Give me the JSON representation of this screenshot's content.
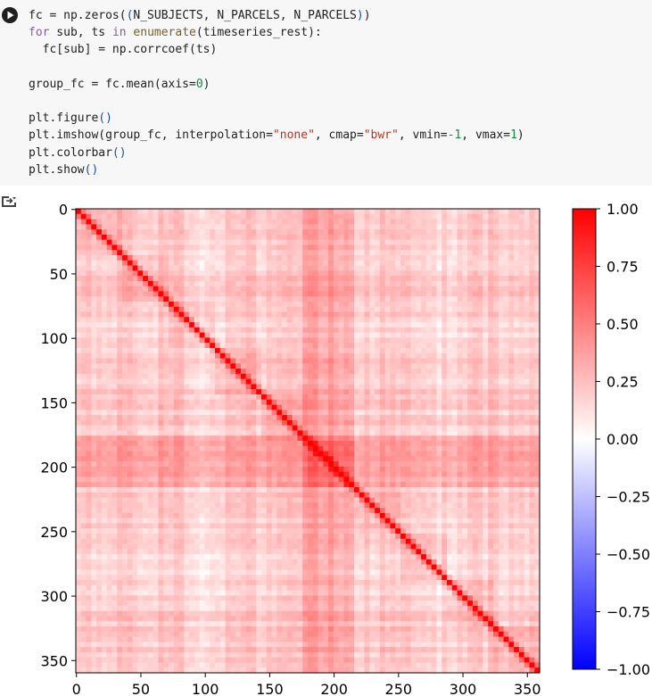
{
  "code_cell": {
    "lines": [
      [
        [
          "fc = np.zeros(",
          ""
        ],
        [
          "(",
          "pn"
        ],
        [
          "N_SUBJECTS, N_PARCELS, N_PARCELS",
          ""
        ],
        [
          ")",
          "pn"
        ],
        [
          ")",
          ""
        ]
      ],
      [
        [
          "for",
          "kw"
        ],
        [
          " sub, ts ",
          ""
        ],
        [
          "in",
          "kw"
        ],
        [
          " ",
          ""
        ],
        [
          "enumerate",
          "fn"
        ],
        [
          "(timeseries_rest):",
          ""
        ]
      ],
      [
        [
          "  fc[sub] = np.corrcoef(ts)",
          ""
        ]
      ],
      [
        [
          "",
          ""
        ]
      ],
      [
        [
          "group_fc = fc.mean(axis=",
          ""
        ],
        [
          "0",
          "num"
        ],
        [
          ")",
          ""
        ]
      ],
      [
        [
          "",
          ""
        ]
      ],
      [
        [
          "plt.figure",
          ""
        ],
        [
          "()",
          "pn"
        ]
      ],
      [
        [
          "plt.imshow(group_fc, interpolation=",
          ""
        ],
        [
          "\"none\"",
          "str"
        ],
        [
          ", cmap=",
          ""
        ],
        [
          "\"bwr\"",
          "str"
        ],
        [
          ", vmin=",
          ""
        ],
        [
          "-1",
          "num"
        ],
        [
          ", vmax=",
          ""
        ],
        [
          "1",
          "num"
        ],
        [
          ")",
          ""
        ]
      ],
      [
        [
          "plt.colorbar",
          ""
        ],
        [
          "()",
          "pn"
        ]
      ],
      [
        [
          "plt.show",
          ""
        ],
        [
          "()",
          "pn"
        ]
      ]
    ]
  },
  "output_icon": "output-toggle-icon",
  "chart_data": {
    "type": "heatmap",
    "description": "group-average 360x360 correlation matrix shown with bwr colormap",
    "size": 360,
    "xticks": [
      0,
      50,
      100,
      150,
      200,
      250,
      300,
      350
    ],
    "yticks": [
      0,
      50,
      100,
      150,
      200,
      250,
      300,
      350
    ],
    "xticklabels": [
      "0",
      "50",
      "100",
      "150",
      "200",
      "250",
      "300",
      "350"
    ],
    "yticklabels": [
      "0",
      "50",
      "100",
      "150",
      "200",
      "250",
      "300",
      "350"
    ],
    "vmin": -1,
    "vmax": 1,
    "cmap": "bwr",
    "diagonal_value": 1.0,
    "colorbar": {
      "ticks": [
        1.0,
        0.75,
        0.5,
        0.25,
        0.0,
        -0.25,
        -0.5,
        -0.75,
        -1.0
      ],
      "ticklabels": [
        "1.00",
        "0.75",
        "0.50",
        "0.25",
        "0.00",
        "−0.25",
        "−0.50",
        "−0.75",
        "−1.00"
      ]
    }
  }
}
